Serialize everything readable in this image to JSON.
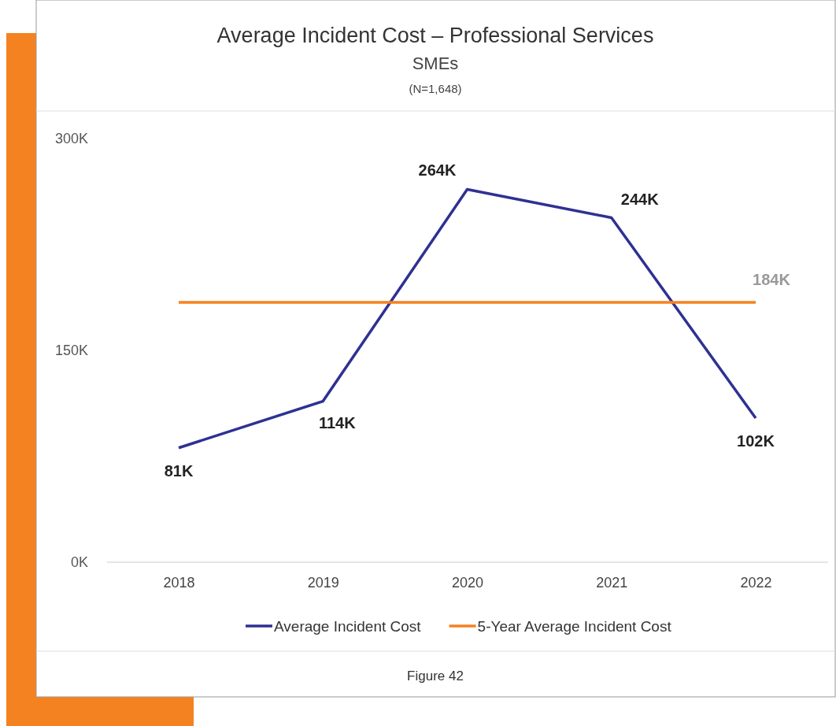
{
  "chart_data": {
    "type": "line",
    "title": "Average Incident Cost – Professional Services",
    "subtitle": "SMEs\n(N=1,648)",
    "categories": [
      "2018",
      "2019",
      "2020",
      "2021",
      "2022"
    ],
    "series": [
      {
        "name": "Average Incident Cost",
        "color": "#2e3192",
        "values": [
          81000,
          114000,
          264000,
          244000,
          102000
        ],
        "value_labels": [
          "81K",
          "114K",
          "264K",
          "244K",
          "102K"
        ]
      },
      {
        "name": "5-Year Average Incident Cost",
        "color": "#f58220",
        "values": [
          184000,
          184000,
          184000,
          184000,
          184000
        ],
        "value_labels": [
          null,
          null,
          null,
          null,
          "184K"
        ]
      }
    ],
    "ylim": [
      0,
      300000
    ],
    "yticks": [
      {
        "value": 0,
        "label": "0K"
      },
      {
        "value": 150000,
        "label": "150K"
      },
      {
        "value": 300000,
        "label": "300K"
      }
    ],
    "grid": false,
    "legend": "bottom",
    "marker": "none",
    "line_style": "solid",
    "annotations": [
      "Figure 42"
    ]
  }
}
